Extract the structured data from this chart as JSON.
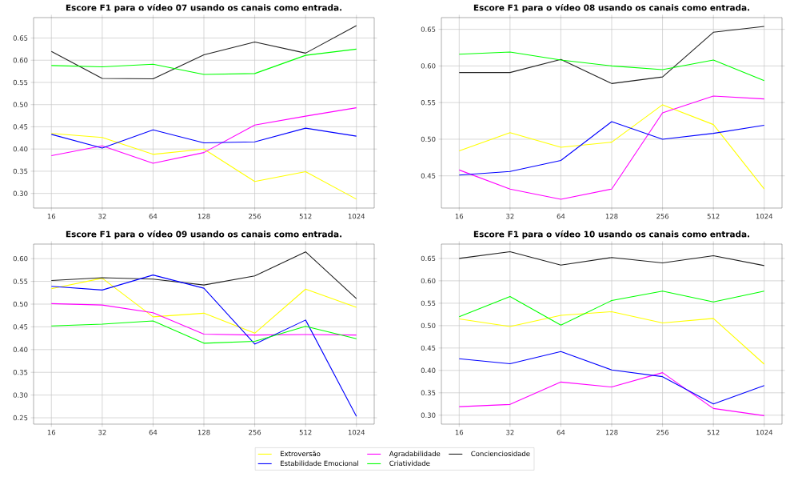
{
  "chart_data": [
    {
      "type": "line",
      "title": "Escore F1 para o vídeo 07 usando os canais como entrada.",
      "categories": [
        "16",
        "32",
        "64",
        "128",
        "256",
        "512",
        "1024"
      ],
      "ylim": [
        0.267,
        0.696
      ],
      "yticks": [
        {
          "value": 0.3,
          "label": "0.30"
        },
        0.35,
        {
          "value": 0.4,
          "label": "0.40"
        },
        0.45,
        {
          "value": 0.5,
          "label": "0.50"
        },
        0.55,
        {
          "value": 0.6,
          "label": "0.60"
        },
        0.65
      ],
      "grid": true,
      "marker": "none",
      "line_style": "solid",
      "series": [
        {
          "color": "#ffff00",
          "values": [
            0.435,
            0.426,
            0.388,
            0.4,
            0.327,
            0.349,
            0.287
          ]
        },
        {
          "color": "#ff00ff",
          "values": [
            0.385,
            0.407,
            0.368,
            0.392,
            0.454,
            0.474,
            0.493
          ]
        },
        {
          "color": "#222222",
          "values": [
            0.62,
            0.559,
            0.558,
            0.612,
            0.641,
            0.616,
            0.678
          ]
        },
        {
          "color": "#0000ff",
          "values": [
            0.433,
            0.402,
            0.443,
            0.414,
            0.416,
            0.447,
            0.429
          ]
        },
        {
          "color": "#00ff00",
          "values": [
            0.588,
            0.585,
            0.591,
            0.568,
            0.57,
            0.611,
            0.625
          ]
        }
      ]
    },
    {
      "type": "line",
      "title": "Escore F1 para o vídeo 08 usando os canais como entrada.",
      "categories": [
        "16",
        "32",
        "64",
        "128",
        "256",
        "512",
        "1024"
      ],
      "ylim": [
        0.406,
        0.666
      ],
      "yticks": [
        0.45,
        {
          "value": 0.5,
          "label": "0.50"
        },
        0.55,
        {
          "value": 0.6,
          "label": "0.60"
        },
        0.65
      ],
      "grid": true,
      "marker": "none",
      "line_style": "solid",
      "series": [
        {
          "color": "#ffff00",
          "values": [
            0.484,
            0.509,
            0.489,
            0.496,
            0.547,
            0.52,
            0.432
          ]
        },
        {
          "color": "#ff00ff",
          "values": [
            0.458,
            0.432,
            0.418,
            0.432,
            0.536,
            0.559,
            0.555
          ]
        },
        {
          "color": "#222222",
          "values": [
            0.591,
            0.591,
            0.609,
            0.576,
            0.585,
            0.646,
            0.654
          ]
        },
        {
          "color": "#0000ff",
          "values": [
            0.451,
            0.456,
            0.471,
            0.524,
            0.5,
            0.508,
            0.519
          ]
        },
        {
          "color": "#00ff00",
          "values": [
            0.616,
            0.619,
            0.608,
            0.6,
            0.595,
            0.608,
            0.58
          ]
        }
      ]
    },
    {
      "type": "line",
      "title": "Escore F1 para o vídeo 09 usando os canais como entrada.",
      "categories": [
        "16",
        "32",
        "64",
        "128",
        "256",
        "512",
        "1024"
      ],
      "ylim": [
        0.236,
        0.632
      ],
      "yticks": [
        0.25,
        {
          "value": 0.3,
          "label": "0.30"
        },
        0.35,
        {
          "value": 0.4,
          "label": "0.40"
        },
        0.45,
        {
          "value": 0.5,
          "label": "0.50"
        },
        0.55,
        {
          "value": 0.6,
          "label": "0.60"
        }
      ],
      "grid": true,
      "marker": "none",
      "line_style": "solid",
      "legend": "bottom",
      "series": [
        {
          "name": "Extroversão",
          "color": "#ffff00",
          "values": [
            0.534,
            0.557,
            0.472,
            0.48,
            0.436,
            0.533,
            0.493
          ]
        },
        {
          "name": "Agradabilidade",
          "color": "#ff00ff",
          "values": [
            0.501,
            0.498,
            0.481,
            0.434,
            0.432,
            0.433,
            0.432
          ]
        },
        {
          "name": "Concienciosidade",
          "color": "#222222",
          "values": [
            0.552,
            0.558,
            0.555,
            0.542,
            0.562,
            0.615,
            0.512
          ]
        },
        {
          "name": "Estabilidade Emocional",
          "color": "#0000ff",
          "values": [
            0.539,
            0.531,
            0.564,
            0.535,
            0.412,
            0.465,
            0.253
          ]
        },
        {
          "name": "Criatividade",
          "color": "#00ff00",
          "values": [
            0.452,
            0.456,
            0.463,
            0.414,
            0.418,
            0.451,
            0.424
          ]
        }
      ]
    },
    {
      "type": "line",
      "title": "Escore F1 para o vídeo 10 usando os canais como entrada.",
      "categories": [
        "16",
        "32",
        "64",
        "128",
        "256",
        "512",
        "1024"
      ],
      "ylim": [
        0.28,
        0.682
      ],
      "yticks": [
        {
          "value": 0.3,
          "label": "0.30"
        },
        0.35,
        {
          "value": 0.4,
          "label": "0.40"
        },
        0.45,
        {
          "value": 0.5,
          "label": "0.50"
        },
        0.55,
        {
          "value": 0.6,
          "label": "0.60"
        },
        0.65
      ],
      "grid": true,
      "marker": "none",
      "line_style": "solid",
      "series": [
        {
          "color": "#ffff00",
          "values": [
            0.515,
            0.498,
            0.523,
            0.531,
            0.506,
            0.516,
            0.414
          ]
        },
        {
          "color": "#ff00ff",
          "values": [
            0.319,
            0.324,
            0.374,
            0.363,
            0.395,
            0.315,
            0.299
          ]
        },
        {
          "color": "#222222",
          "values": [
            0.65,
            0.665,
            0.635,
            0.652,
            0.64,
            0.656,
            0.634
          ]
        },
        {
          "color": "#0000ff",
          "values": [
            0.426,
            0.415,
            0.442,
            0.401,
            0.386,
            0.325,
            0.366
          ]
        },
        {
          "color": "#00ff00",
          "values": [
            0.52,
            0.565,
            0.501,
            0.556,
            0.577,
            0.553,
            0.577
          ]
        }
      ]
    }
  ]
}
